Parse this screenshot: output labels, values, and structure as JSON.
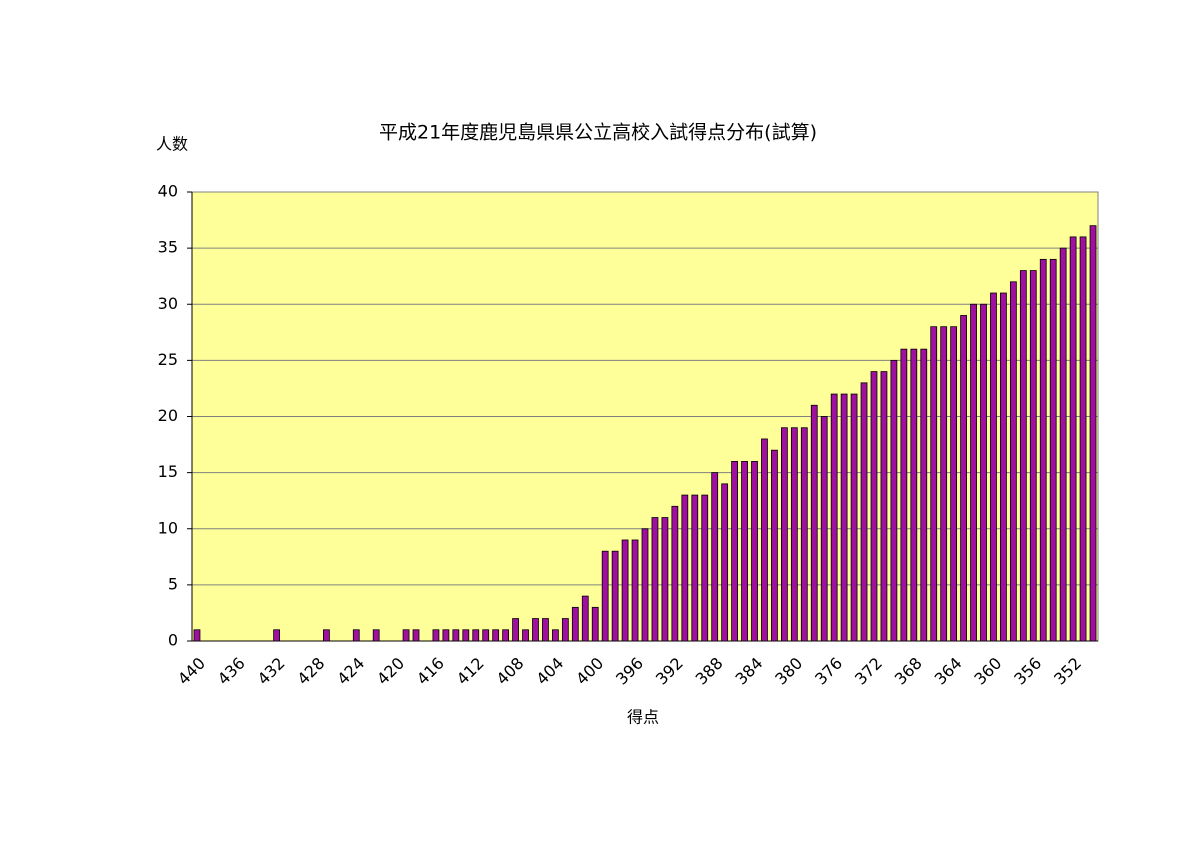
{
  "chart_data": {
    "type": "bar",
    "title": "平成21年度鹿児島県県公立高校入試得点分布(試算)",
    "y_label": "人数",
    "x_label": "得点",
    "categories": [
      440,
      null,
      null,
      null,
      436,
      null,
      null,
      null,
      432,
      null,
      null,
      null,
      428,
      null,
      null,
      null,
      424,
      null,
      null,
      null,
      420,
      null,
      null,
      null,
      416,
      null,
      null,
      null,
      412,
      null,
      null,
      null,
      408,
      null,
      null,
      null,
      404,
      null,
      null,
      null,
      400,
      null,
      null,
      null,
      396,
      null,
      null,
      null,
      392,
      null,
      null,
      null,
      388,
      null,
      null,
      null,
      384,
      null,
      null,
      null,
      380,
      null,
      null,
      null,
      376,
      null,
      null,
      null,
      372,
      null,
      null,
      null,
      368,
      null,
      null,
      null,
      364,
      null,
      null,
      null,
      360,
      null,
      null,
      null,
      356,
      null,
      null,
      null,
      352,
      null,
      null
    ],
    "values": [
      1,
      0,
      0,
      0,
      0,
      0,
      0,
      0,
      1,
      0,
      0,
      0,
      0,
      1,
      0,
      0,
      1,
      0,
      1,
      0,
      0,
      1,
      1,
      0,
      1,
      1,
      1,
      1,
      1,
      1,
      1,
      1,
      2,
      1,
      2,
      2,
      1,
      2,
      3,
      4,
      3,
      8,
      8,
      9,
      9,
      10,
      11,
      11,
      12,
      13,
      13,
      13,
      15,
      14,
      16,
      16,
      16,
      18,
      17,
      19,
      19,
      19,
      21,
      20,
      22,
      22,
      22,
      23,
      24,
      24,
      25,
      26,
      26,
      26,
      28,
      28,
      28,
      29,
      30,
      30,
      31,
      31,
      32,
      33,
      33,
      34,
      34,
      35,
      36,
      36,
      37
    ],
    "color": "#a010a0",
    "plot_background": "#ffff99",
    "ylim": [
      0,
      40
    ],
    "yticks": [
      0,
      5,
      10,
      15,
      20,
      25,
      30,
      35,
      40
    ],
    "grid": true
  }
}
